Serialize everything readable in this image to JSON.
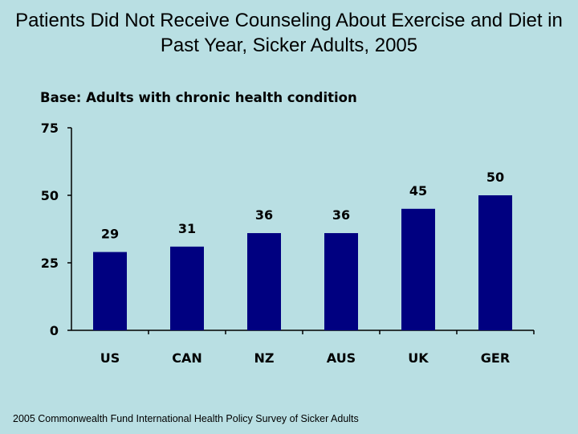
{
  "chart_data": {
    "type": "bar",
    "title": "Patients Did Not Receive Counseling About Exercise and Diet in Past Year, Sicker Adults, 2005",
    "subtitle": "Base: Adults with chronic health condition",
    "categories": [
      "US",
      "CAN",
      "NZ",
      "AUS",
      "UK",
      "GER"
    ],
    "values": [
      29,
      31,
      36,
      36,
      45,
      50
    ],
    "ylim": [
      0,
      75
    ],
    "yticks": [
      0,
      25,
      50,
      75
    ],
    "xlabel": "",
    "ylabel": "",
    "grid": false,
    "bar_color": "#000080",
    "background": "#b9dfe3"
  },
  "footnote": "2005 Commonwealth Fund International Health Policy Survey of Sicker Adults"
}
